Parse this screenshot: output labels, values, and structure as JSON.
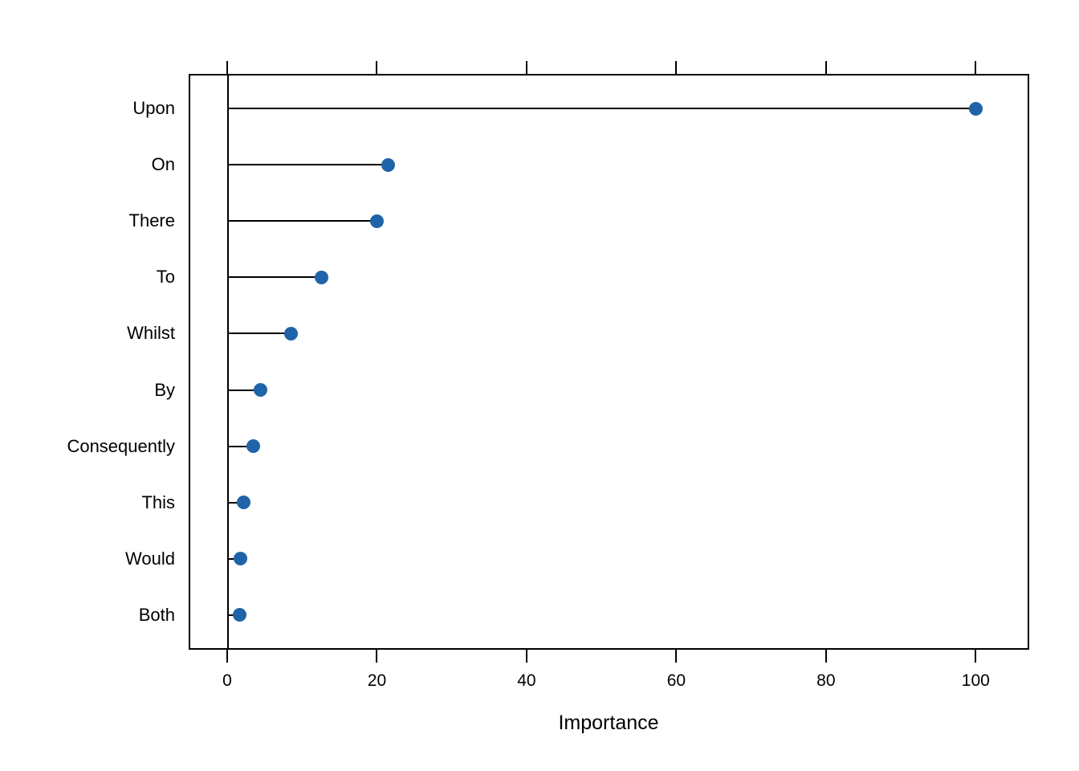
{
  "chart_data": {
    "type": "scatter",
    "subtype": "lollipop-dotchart",
    "orientation": "horizontal",
    "title": "",
    "xlabel": "Importance",
    "ylabel": "",
    "categories": [
      "Upon",
      "On",
      "There",
      "To",
      "Whilst",
      "By",
      "Consequently",
      "This",
      "Would",
      "Both"
    ],
    "values": [
      100,
      21.5,
      20,
      12.6,
      8.5,
      4.4,
      3.5,
      2.2,
      1.8,
      1.7
    ],
    "x_ticks": [
      0,
      20,
      40,
      60,
      80,
      100
    ],
    "xlim": [
      -5.15,
      107.15
    ],
    "grid": false,
    "legend": false,
    "zero_reference_line": true,
    "marker_color": "#1F64A8",
    "line_color": "#000000",
    "background_color": "#ffffff"
  }
}
